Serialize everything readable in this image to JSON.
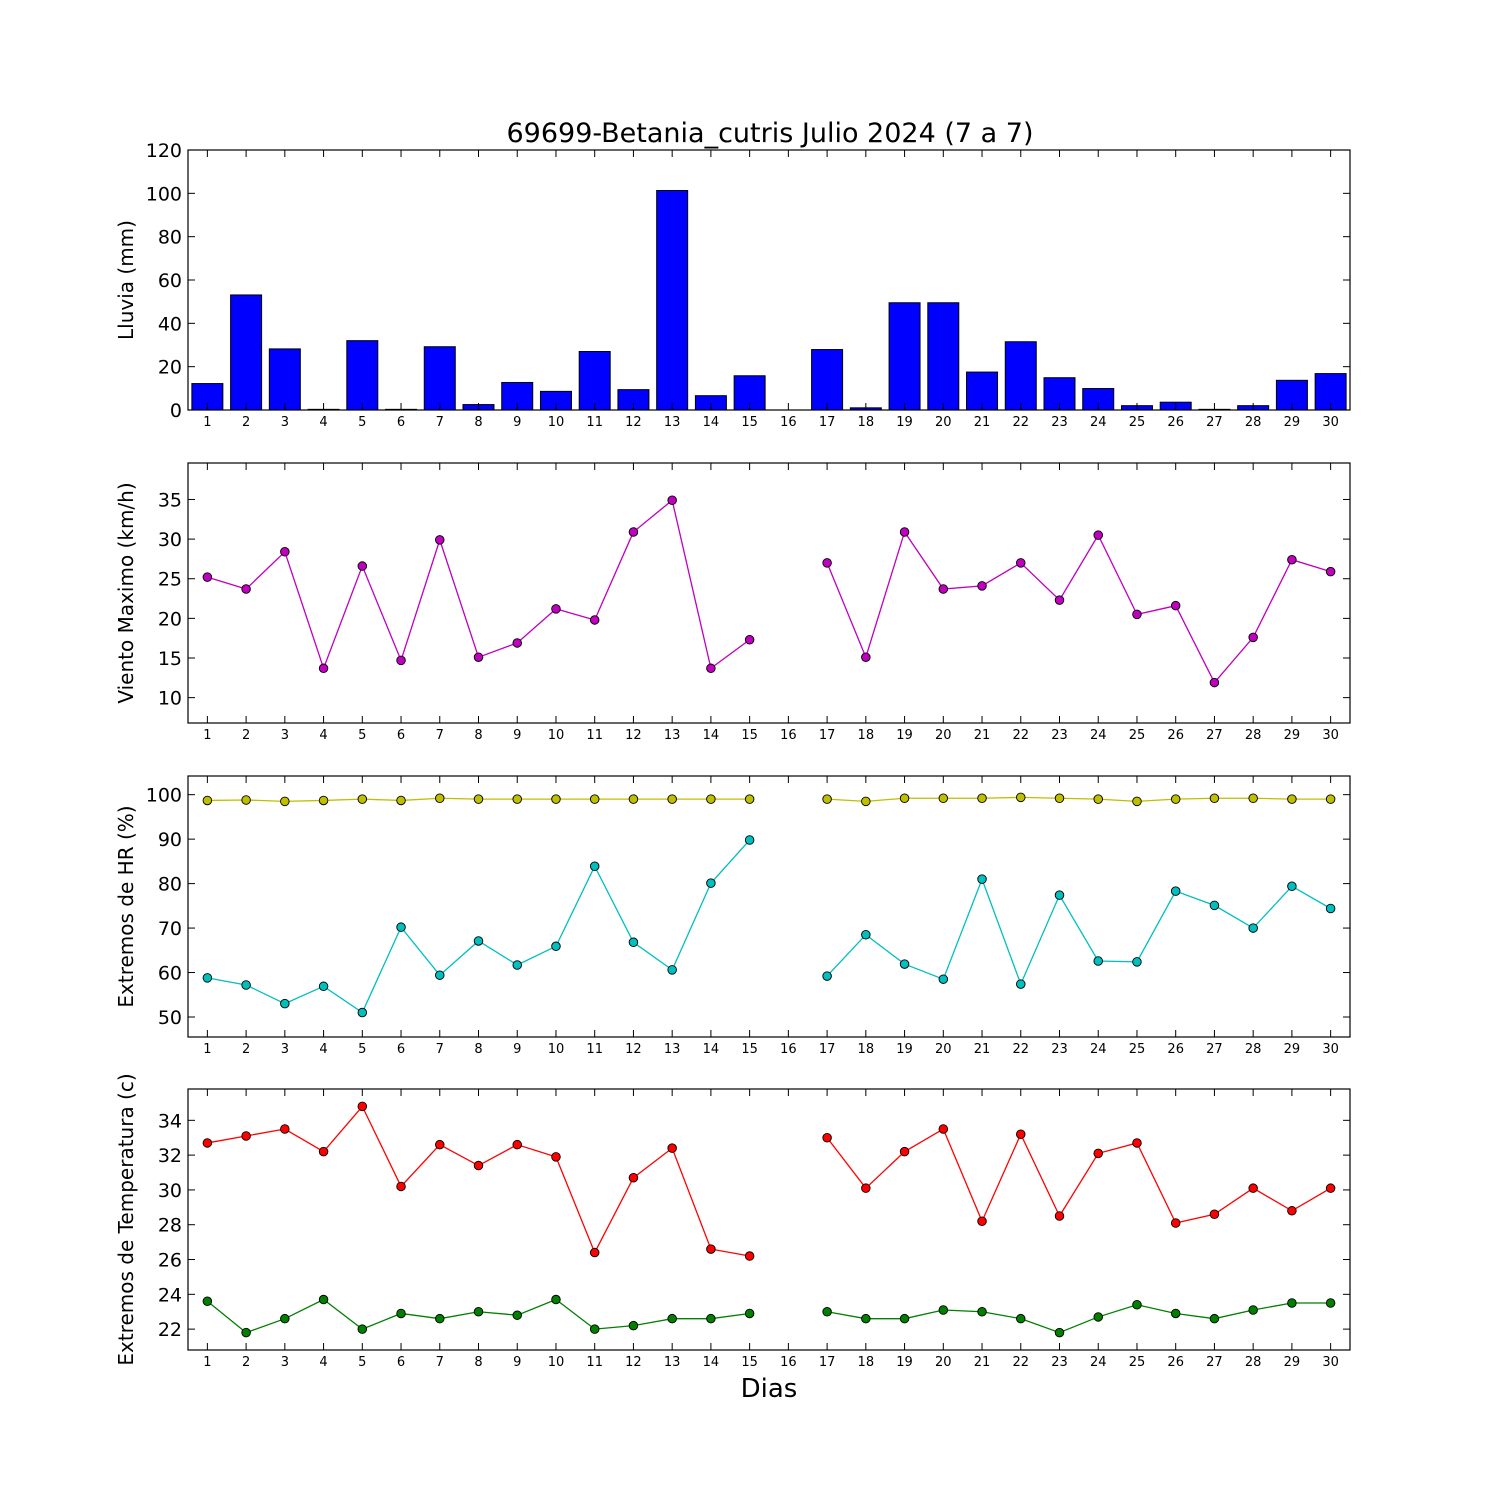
{
  "figure": {
    "title": "69699-Betania_cutris Julio 2024  (7 a 7)",
    "xlabel": "Dias"
  },
  "chart_data": [
    {
      "type": "bar",
      "ylabel": "Lluvia (mm)",
      "xlim": [
        0.5,
        30.5
      ],
      "ylim": [
        0,
        120
      ],
      "yticks": [
        0,
        20,
        40,
        60,
        80,
        100,
        120
      ],
      "categories": [
        1,
        2,
        3,
        4,
        5,
        6,
        7,
        8,
        9,
        10,
        11,
        12,
        13,
        14,
        15,
        16,
        17,
        18,
        19,
        20,
        21,
        22,
        23,
        24,
        25,
        26,
        27,
        28,
        29,
        30
      ],
      "values": [
        12.2,
        53.1,
        28.2,
        0.3,
        32.0,
        0.3,
        29.2,
        2.5,
        12.7,
        8.6,
        27.0,
        9.4,
        101.3,
        6.6,
        15.8,
        0,
        27.9,
        1.0,
        49.5,
        49.5,
        17.5,
        31.5,
        14.9,
        9.9,
        2.0,
        3.6,
        0.3,
        2.0,
        13.7,
        16.8
      ],
      "color": "#0000ff"
    },
    {
      "type": "line",
      "ylabel": "Viento Maximo (km/h)",
      "xlim": [
        0.5,
        30.5
      ],
      "ylim": [
        6.8,
        39.6
      ],
      "yticks": [
        10,
        15,
        20,
        25,
        30,
        35
      ],
      "x": [
        1,
        2,
        3,
        4,
        5,
        6,
        7,
        8,
        9,
        10,
        11,
        12,
        13,
        14,
        15,
        16,
        17,
        18,
        19,
        20,
        21,
        22,
        23,
        24,
        25,
        26,
        27,
        28,
        29,
        30
      ],
      "series": [
        {
          "color": "#bf00bf",
          "values": [
            25.2,
            23.7,
            28.4,
            13.7,
            26.6,
            14.7,
            29.9,
            15.1,
            16.9,
            21.2,
            19.8,
            30.9,
            34.9,
            13.7,
            17.3,
            null,
            27.0,
            15.1,
            30.9,
            23.7,
            24.1,
            27.0,
            22.3,
            30.5,
            20.5,
            21.6,
            11.9,
            17.6,
            27.4,
            25.9
          ]
        }
      ]
    },
    {
      "type": "line",
      "ylabel": "Extremos de HR (%)",
      "xlim": [
        0.5,
        30.5
      ],
      "ylim": [
        45.5,
        104.2
      ],
      "yticks": [
        50,
        60,
        70,
        80,
        90,
        100
      ],
      "x": [
        1,
        2,
        3,
        4,
        5,
        6,
        7,
        8,
        9,
        10,
        11,
        12,
        13,
        14,
        15,
        16,
        17,
        18,
        19,
        20,
        21,
        22,
        23,
        24,
        25,
        26,
        27,
        28,
        29,
        30
      ],
      "series": [
        {
          "color": "#bfbf00",
          "values": [
            98.7,
            98.8,
            98.5,
            98.7,
            99.0,
            98.7,
            99.2,
            99.0,
            99.0,
            99.0,
            99.0,
            99.0,
            99.0,
            99.0,
            99.0,
            null,
            99.0,
            98.5,
            99.2,
            99.2,
            99.2,
            99.4,
            99.2,
            99.0,
            98.5,
            99.0,
            99.2,
            99.2,
            99.0,
            99.0
          ]
        },
        {
          "color": "#00bfbf",
          "values": [
            58.8,
            57.2,
            53.0,
            56.9,
            51.0,
            70.2,
            59.4,
            67.1,
            61.7,
            65.9,
            83.9,
            66.8,
            60.6,
            80.1,
            89.8,
            null,
            59.2,
            68.5,
            61.9,
            58.5,
            81.0,
            57.4,
            77.4,
            62.6,
            62.4,
            78.3,
            75.1,
            70.0,
            79.4,
            74.4
          ]
        }
      ]
    },
    {
      "type": "line",
      "ylabel": "Extremos de Temperatura (c)",
      "xlim": [
        0.5,
        30.5
      ],
      "ylim": [
        20.8,
        35.8
      ],
      "yticks": [
        22,
        24,
        26,
        28,
        30,
        32,
        34
      ],
      "x": [
        1,
        2,
        3,
        4,
        5,
        6,
        7,
        8,
        9,
        10,
        11,
        12,
        13,
        14,
        15,
        16,
        17,
        18,
        19,
        20,
        21,
        22,
        23,
        24,
        25,
        26,
        27,
        28,
        29,
        30
      ],
      "series": [
        {
          "color": "#ff0000",
          "values": [
            32.7,
            33.1,
            33.5,
            32.2,
            34.8,
            30.2,
            32.6,
            31.4,
            32.6,
            31.9,
            26.4,
            30.7,
            32.4,
            26.6,
            26.2,
            null,
            33.0,
            30.1,
            32.2,
            33.5,
            28.2,
            33.2,
            28.5,
            32.1,
            32.7,
            28.1,
            28.6,
            30.1,
            28.8,
            30.1
          ]
        },
        {
          "color": "#007f00",
          "values": [
            23.6,
            21.8,
            22.6,
            23.7,
            22.0,
            22.9,
            22.6,
            23.0,
            22.8,
            23.7,
            22.0,
            22.2,
            22.6,
            22.6,
            22.9,
            null,
            23.0,
            22.6,
            22.6,
            23.1,
            23.0,
            22.6,
            21.8,
            22.7,
            23.4,
            22.9,
            22.6,
            23.1,
            23.5,
            23.5
          ]
        }
      ]
    }
  ]
}
